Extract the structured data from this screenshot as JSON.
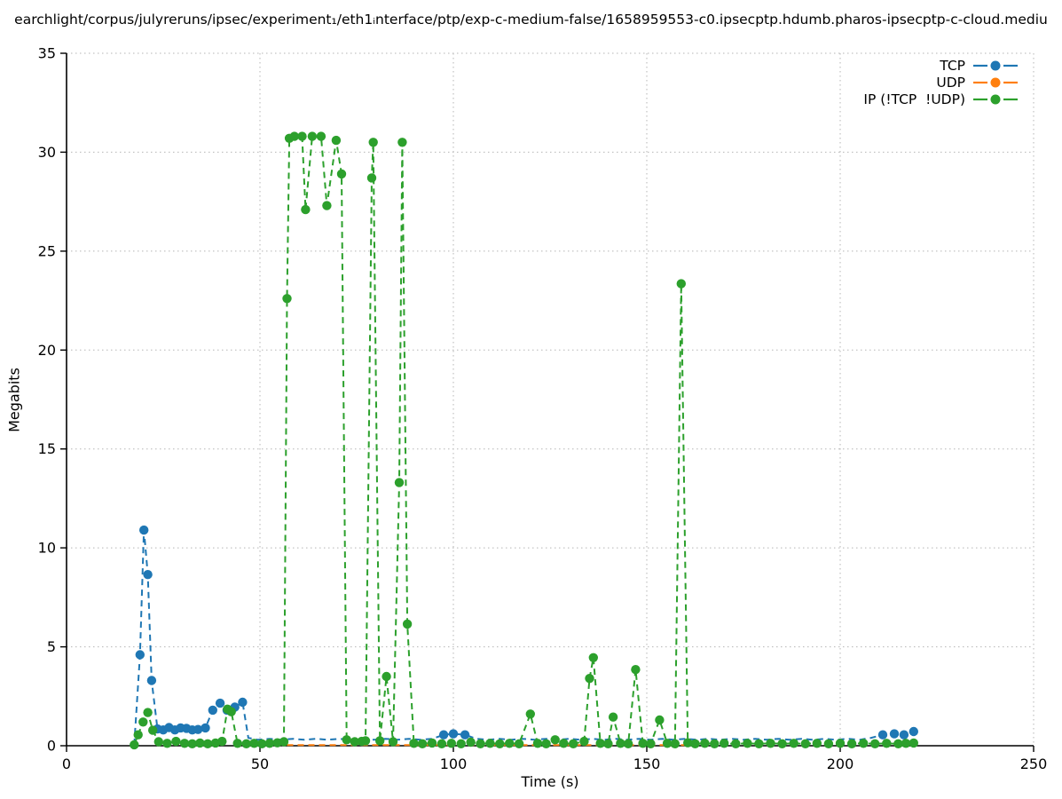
{
  "figure": {
    "background": "#ffffff"
  },
  "chart_data": {
    "type": "line",
    "title": "earchlight/corpus/julyreruns/ipsec/experiment₁/eth1ᵢnterface/ptp/exp-c-medium-false/1658959553-c0.ipsecptp.hdumb.pharos-ipsecptp-c-cloud.mediu",
    "xlabel": "Time (s)",
    "ylabel": "Megabits",
    "xlim": [
      0,
      250
    ],
    "ylim": [
      0,
      35
    ],
    "xticks": [
      0,
      50,
      100,
      150,
      200,
      250
    ],
    "yticks": [
      0,
      5,
      10,
      15,
      20,
      25,
      30,
      35
    ],
    "grid": true,
    "axis_color": "#000000",
    "grid_color": "#b5b5b5",
    "legend": {
      "position": "top-right"
    },
    "series": [
      {
        "name": "TCP",
        "color": "#1f77b4",
        "marker_min": 0.45,
        "points": [
          [
            17.5,
            0.05
          ],
          [
            19,
            4.6
          ],
          [
            20,
            10.9
          ],
          [
            21,
            8.65
          ],
          [
            22,
            3.3
          ],
          [
            23.5,
            0.85
          ],
          [
            25,
            0.8
          ],
          [
            26.5,
            0.92
          ],
          [
            28,
            0.8
          ],
          [
            29.5,
            0.9
          ],
          [
            31,
            0.88
          ],
          [
            32.5,
            0.8
          ],
          [
            34,
            0.82
          ],
          [
            35.9,
            0.9
          ],
          [
            37.8,
            1.8
          ],
          [
            39.7,
            2.15
          ],
          [
            41.5,
            1.8
          ],
          [
            43.5,
            1.95
          ],
          [
            45.5,
            2.2
          ],
          [
            47,
            0.4
          ],
          [
            49.5,
            0.3
          ],
          [
            52.5,
            0.35
          ],
          [
            55.5,
            0.3
          ],
          [
            58.5,
            0.35
          ],
          [
            61.5,
            0.3
          ],
          [
            64.5,
            0.35
          ],
          [
            67.5,
            0.3
          ],
          [
            70.5,
            0.35
          ],
          [
            73.5,
            0.3
          ],
          [
            76.5,
            0.35
          ],
          [
            79.5,
            0.3
          ],
          [
            82.5,
            0.35
          ],
          [
            85.5,
            0.3
          ],
          [
            88.5,
            0.35
          ],
          [
            91.5,
            0.3
          ],
          [
            94.5,
            0.35
          ],
          [
            97.5,
            0.55
          ],
          [
            100,
            0.6
          ],
          [
            103,
            0.55
          ],
          [
            106,
            0.35
          ],
          [
            109,
            0.3
          ],
          [
            112,
            0.35
          ],
          [
            115,
            0.3
          ],
          [
            118,
            0.35
          ],
          [
            121,
            0.3
          ],
          [
            124,
            0.35
          ],
          [
            127,
            0.3
          ],
          [
            130,
            0.35
          ],
          [
            133,
            0.3
          ],
          [
            136,
            0.35
          ],
          [
            139,
            0.3
          ],
          [
            142,
            0.35
          ],
          [
            145,
            0.3
          ],
          [
            148,
            0.35
          ],
          [
            151,
            0.3
          ],
          [
            154,
            0.35
          ],
          [
            157,
            0.3
          ],
          [
            160,
            0.35
          ],
          [
            163,
            0.3
          ],
          [
            166,
            0.35
          ],
          [
            169,
            0.3
          ],
          [
            172,
            0.35
          ],
          [
            175,
            0.3
          ],
          [
            178,
            0.35
          ],
          [
            181,
            0.3
          ],
          [
            184,
            0.35
          ],
          [
            187,
            0.3
          ],
          [
            190,
            0.35
          ],
          [
            193,
            0.3
          ],
          [
            196,
            0.35
          ],
          [
            199,
            0.3
          ],
          [
            202,
            0.35
          ],
          [
            205,
            0.3
          ],
          [
            208,
            0.4
          ],
          [
            211,
            0.55
          ],
          [
            214,
            0.6
          ],
          [
            216.5,
            0.55
          ],
          [
            219,
            0.72
          ]
        ]
      },
      {
        "name": "UDP",
        "color": "#ff7f0e",
        "marker_min": 999,
        "points": [
          [
            57,
            0.03
          ],
          [
            60,
            0.03
          ],
          [
            63,
            0.03
          ],
          [
            66,
            0.03
          ],
          [
            69,
            0.03
          ],
          [
            72,
            0.03
          ],
          [
            75,
            0.03
          ],
          [
            78,
            0.03
          ],
          [
            81,
            0.03
          ],
          [
            84,
            0.03
          ],
          [
            87,
            0.03
          ],
          [
            90,
            0.03
          ],
          [
            93,
            0.03
          ],
          [
            96,
            0.03
          ],
          [
            99,
            0.03
          ],
          [
            102,
            0.03
          ],
          [
            105,
            0.03
          ],
          [
            108,
            0.03
          ],
          [
            111,
            0.03
          ],
          [
            114,
            0.03
          ],
          [
            117,
            0.03
          ],
          [
            120,
            0.03
          ],
          [
            123,
            0.03
          ],
          [
            126,
            0.03
          ],
          [
            129,
            0.03
          ],
          [
            132,
            0.03
          ],
          [
            135,
            0.03
          ],
          [
            138,
            0.03
          ],
          [
            141,
            0.03
          ],
          [
            144,
            0.03
          ],
          [
            147,
            0.03
          ],
          [
            150,
            0.03
          ],
          [
            153,
            0.03
          ],
          [
            156,
            0.03
          ],
          [
            159,
            0.03
          ],
          [
            160,
            0.03
          ]
        ]
      },
      {
        "name": "IP (!TCP  !UDP)",
        "color": "#2ca02c",
        "marker_min": 0,
        "points": [
          [
            17.5,
            0.05
          ],
          [
            18.5,
            0.55
          ],
          [
            19.8,
            1.2
          ],
          [
            21,
            1.68
          ],
          [
            22.3,
            0.78
          ],
          [
            23.8,
            0.2
          ],
          [
            26,
            0.12
          ],
          [
            28.3,
            0.22
          ],
          [
            30.5,
            0.12
          ],
          [
            32.5,
            0.1
          ],
          [
            34.5,
            0.14
          ],
          [
            36.5,
            0.1
          ],
          [
            38.5,
            0.14
          ],
          [
            40.2,
            0.22
          ],
          [
            41.6,
            1.85
          ],
          [
            42.6,
            1.72
          ],
          [
            44.2,
            0.12
          ],
          [
            46.5,
            0.1
          ],
          [
            48.5,
            0.12
          ],
          [
            50.5,
            0.1
          ],
          [
            52.5,
            0.12
          ],
          [
            54.5,
            0.15
          ],
          [
            56.2,
            0.2
          ],
          [
            57,
            22.6
          ],
          [
            57.6,
            30.7
          ],
          [
            58.9,
            30.8
          ],
          [
            60.9,
            30.8
          ],
          [
            61.8,
            27.1
          ],
          [
            63.5,
            30.8
          ],
          [
            65.8,
            30.8
          ],
          [
            67.3,
            27.3
          ],
          [
            69.7,
            30.6
          ],
          [
            71.1,
            28.9
          ],
          [
            72.4,
            0.3
          ],
          [
            74.5,
            0.2
          ],
          [
            76.3,
            0.22
          ],
          [
            77.3,
            0.25
          ],
          [
            78.9,
            28.7
          ],
          [
            79.3,
            30.5
          ],
          [
            81,
            0.25
          ],
          [
            82.7,
            3.5
          ],
          [
            84.4,
            0.2
          ],
          [
            86,
            13.3
          ],
          [
            86.8,
            30.5
          ],
          [
            88.1,
            6.15
          ],
          [
            89.8,
            0.12
          ],
          [
            92,
            0.1
          ],
          [
            94.5,
            0.14
          ],
          [
            97,
            0.1
          ],
          [
            99.5,
            0.12
          ],
          [
            102,
            0.1
          ],
          [
            104.5,
            0.18
          ],
          [
            107,
            0.1
          ],
          [
            109.5,
            0.12
          ],
          [
            112,
            0.1
          ],
          [
            114.5,
            0.12
          ],
          [
            117,
            0.1
          ],
          [
            119.9,
            1.6
          ],
          [
            121.8,
            0.12
          ],
          [
            124,
            0.1
          ],
          [
            126.3,
            0.3
          ],
          [
            128.5,
            0.12
          ],
          [
            131,
            0.1
          ],
          [
            133.8,
            0.22
          ],
          [
            135.2,
            3.4
          ],
          [
            136.2,
            4.45
          ],
          [
            138,
            0.12
          ],
          [
            140,
            0.1
          ],
          [
            141.3,
            1.45
          ],
          [
            143.2,
            0.12
          ],
          [
            145.2,
            0.1
          ],
          [
            147.1,
            3.85
          ],
          [
            149,
            0.12
          ],
          [
            151,
            0.1
          ],
          [
            153.3,
            1.3
          ],
          [
            155.3,
            0.12
          ],
          [
            157.3,
            0.1
          ],
          [
            158.9,
            23.35
          ],
          [
            160.6,
            0.15
          ],
          [
            162.5,
            0.1
          ],
          [
            165,
            0.12
          ],
          [
            167.5,
            0.1
          ],
          [
            170,
            0.12
          ],
          [
            173,
            0.1
          ],
          [
            176,
            0.12
          ],
          [
            179,
            0.1
          ],
          [
            182,
            0.12
          ],
          [
            185,
            0.1
          ],
          [
            188,
            0.12
          ],
          [
            191,
            0.1
          ],
          [
            194,
            0.12
          ],
          [
            197,
            0.1
          ],
          [
            200,
            0.12
          ],
          [
            203,
            0.1
          ],
          [
            206,
            0.12
          ],
          [
            209,
            0.1
          ],
          [
            212,
            0.12
          ],
          [
            215,
            0.1
          ],
          [
            217,
            0.12
          ],
          [
            219,
            0.14
          ]
        ]
      }
    ]
  }
}
